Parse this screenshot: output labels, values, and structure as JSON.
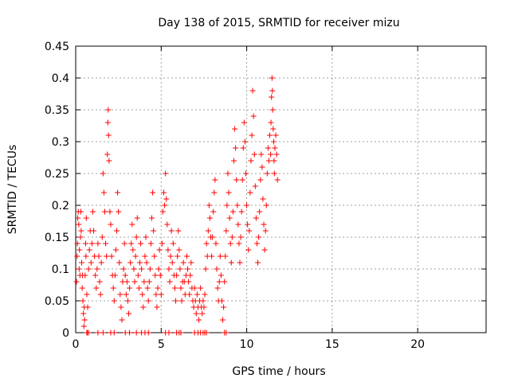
{
  "chart_data": {
    "type": "scatter",
    "title": "Day 138 of 2015, SRMTID for receiver mizu",
    "xlabel": "GPS time / hours",
    "ylabel": "SRMTID / TECUs",
    "xlim": [
      0,
      24
    ],
    "ylim": [
      0,
      0.45
    ],
    "xticks": [
      0,
      5,
      10,
      15,
      20
    ],
    "xtick_labels": [
      "0",
      "5",
      "10",
      "15",
      "20"
    ],
    "yticks": [
      0,
      0.05,
      0.1,
      0.15,
      0.2,
      0.25,
      0.3,
      0.35,
      0.4,
      0.45
    ],
    "ytick_labels": [
      "0",
      "0.05",
      "0.1",
      "0.15",
      "0.2",
      "0.25",
      "0.3",
      "0.35",
      "0.4",
      "0.45"
    ],
    "grid": true,
    "marker": "+",
    "color": "#ff0000",
    "series": [
      {
        "name": "SRMTID",
        "points": [
          [
            0.05,
            0.08
          ],
          [
            0.08,
            0.12
          ],
          [
            0.1,
            0.14
          ],
          [
            0.12,
            0.18
          ],
          [
            0.15,
            0.19
          ],
          [
            0.18,
            0.17
          ],
          [
            0.2,
            0.1
          ],
          [
            0.22,
            0.13
          ],
          [
            0.25,
            0.09
          ],
          [
            0.28,
            0.15
          ],
          [
            0.3,
            0.19
          ],
          [
            0.32,
            0.16
          ],
          [
            0.35,
            0.11
          ],
          [
            0.38,
            0.07
          ],
          [
            0.4,
            0.09
          ],
          [
            0.42,
            0.05
          ],
          [
            0.45,
            0.03
          ],
          [
            0.48,
            0.01
          ],
          [
            0.5,
            0.04
          ],
          [
            0.52,
            0.02
          ],
          [
            0.55,
            0.09
          ],
          [
            0.58,
            0.14
          ],
          [
            0.6,
            0.12
          ],
          [
            0.62,
            0.18
          ],
          [
            0.65,
            0.06
          ],
          [
            0.68,
            0.0
          ],
          [
            0.7,
            0.04
          ],
          [
            0.75,
            0.1
          ],
          [
            0.8,
            0.13
          ],
          [
            0.85,
            0.16
          ],
          [
            0.9,
            0.11
          ],
          [
            0.95,
            0.14
          ],
          [
            1.0,
            0.19
          ],
          [
            1.05,
            0.16
          ],
          [
            1.1,
            0.12
          ],
          [
            1.15,
            0.09
          ],
          [
            1.2,
            0.07
          ],
          [
            1.25,
            0.1
          ],
          [
            1.3,
            0.14
          ],
          [
            1.35,
            0.12
          ],
          [
            1.4,
            0.08
          ],
          [
            1.45,
            0.06
          ],
          [
            1.5,
            0.11
          ],
          [
            1.55,
            0.15
          ],
          [
            1.6,
            0.25
          ],
          [
            1.65,
            0.22
          ],
          [
            1.7,
            0.19
          ],
          [
            1.75,
            0.14
          ],
          [
            1.8,
            0.12
          ],
          [
            1.85,
            0.28
          ],
          [
            1.88,
            0.33
          ],
          [
            1.9,
            0.35
          ],
          [
            1.92,
            0.31
          ],
          [
            1.95,
            0.27
          ],
          [
            2.0,
            0.19
          ],
          [
            2.05,
            0.17
          ],
          [
            2.1,
            0.12
          ],
          [
            2.15,
            0.09
          ],
          [
            2.2,
            0.07
          ],
          [
            2.25,
            0.05
          ],
          [
            2.3,
            0.09
          ],
          [
            2.35,
            0.13
          ],
          [
            2.4,
            0.16
          ],
          [
            2.45,
            0.22
          ],
          [
            2.5,
            0.19
          ],
          [
            2.55,
            0.11
          ],
          [
            2.6,
            0.06
          ],
          [
            2.65,
            0.04
          ],
          [
            2.7,
            0.02
          ],
          [
            2.75,
            0.08
          ],
          [
            2.8,
            0.1
          ],
          [
            2.85,
            0.14
          ],
          [
            2.9,
            0.09
          ],
          [
            2.95,
            0.06
          ],
          [
            3.0,
            0.08
          ],
          [
            3.05,
            0.05
          ],
          [
            3.1,
            0.03
          ],
          [
            3.15,
            0.07
          ],
          [
            3.2,
            0.11
          ],
          [
            3.25,
            0.14
          ],
          [
            3.3,
            0.17
          ],
          [
            3.35,
            0.13
          ],
          [
            3.4,
            0.1
          ],
          [
            3.45,
            0.08
          ],
          [
            3.5,
            0.12
          ],
          [
            3.55,
            0.15
          ],
          [
            3.6,
            0.18
          ],
          [
            3.65,
            0.09
          ],
          [
            3.7,
            0.07
          ],
          [
            3.75,
            0.11
          ],
          [
            3.8,
            0.14
          ],
          [
            3.85,
            0.1
          ],
          [
            3.9,
            0.06
          ],
          [
            3.95,
            0.04
          ],
          [
            4.0,
            0.08
          ],
          [
            4.05,
            0.12
          ],
          [
            4.1,
            0.15
          ],
          [
            4.15,
            0.11
          ],
          [
            4.2,
            0.07
          ],
          [
            4.25,
            0.05
          ],
          [
            4.3,
            0.08
          ],
          [
            4.35,
            0.1
          ],
          [
            4.4,
            0.14
          ],
          [
            4.45,
            0.18
          ],
          [
            4.5,
            0.22
          ],
          [
            4.55,
            0.16
          ],
          [
            4.6,
            0.12
          ],
          [
            4.65,
            0.09
          ],
          [
            4.7,
            0.06
          ],
          [
            4.75,
            0.04
          ],
          [
            4.8,
            0.07
          ],
          [
            4.85,
            0.1
          ],
          [
            4.9,
            0.13
          ],
          [
            4.95,
            0.09
          ],
          [
            5.0,
            0.06
          ],
          [
            5.05,
            0.14
          ],
          [
            5.1,
            0.19
          ],
          [
            5.15,
            0.22
          ],
          [
            5.2,
            0.2
          ],
          [
            5.25,
            0.25
          ],
          [
            5.3,
            0.21
          ],
          [
            5.35,
            0.17
          ],
          [
            5.4,
            0.13
          ],
          [
            5.45,
            0.1
          ],
          [
            5.5,
            0.08
          ],
          [
            5.55,
            0.12
          ],
          [
            5.6,
            0.16
          ],
          [
            5.65,
            0.11
          ],
          [
            5.7,
            0.14
          ],
          [
            5.75,
            0.09
          ],
          [
            5.8,
            0.07
          ],
          [
            5.85,
            0.05
          ],
          [
            5.9,
            0.09
          ],
          [
            5.95,
            0.12
          ],
          [
            6.0,
            0.16
          ],
          [
            6.05,
            0.13
          ],
          [
            6.1,
            0.1
          ],
          [
            6.15,
            0.07
          ],
          [
            6.2,
            0.05
          ],
          [
            6.25,
            0.08
          ],
          [
            6.3,
            0.11
          ],
          [
            6.35,
            0.08
          ],
          [
            6.4,
            0.06
          ],
          [
            6.45,
            0.09
          ],
          [
            6.5,
            0.12
          ],
          [
            6.55,
            0.1
          ],
          [
            6.6,
            0.08
          ],
          [
            6.65,
            0.06
          ],
          [
            6.7,
            0.09
          ],
          [
            6.75,
            0.11
          ],
          [
            6.8,
            0.07
          ],
          [
            6.85,
            0.05
          ],
          [
            6.9,
            0.04
          ],
          [
            6.95,
            0.07
          ],
          [
            7.0,
            0.05
          ],
          [
            7.05,
            0.03
          ],
          [
            7.1,
            0.06
          ],
          [
            7.15,
            0.04
          ],
          [
            7.2,
            0.02
          ],
          [
            7.25,
            0.05
          ],
          [
            7.3,
            0.07
          ],
          [
            7.35,
            0.04
          ],
          [
            7.4,
            0.03
          ],
          [
            7.45,
            0.05
          ],
          [
            7.5,
            0.04
          ],
          [
            7.55,
            0.06
          ],
          [
            7.6,
            0.1
          ],
          [
            7.65,
            0.14
          ],
          [
            7.7,
            0.12
          ],
          [
            7.75,
            0.16
          ],
          [
            7.8,
            0.2
          ],
          [
            7.85,
            0.18
          ],
          [
            7.9,
            0.15
          ],
          [
            7.95,
            0.12
          ],
          [
            8.0,
            0.15
          ],
          [
            8.05,
            0.19
          ],
          [
            8.1,
            0.22
          ],
          [
            8.15,
            0.24
          ],
          [
            8.2,
            0.14
          ],
          [
            8.25,
            0.1
          ],
          [
            8.3,
            0.07
          ],
          [
            8.35,
            0.05
          ],
          [
            8.4,
            0.08
          ],
          [
            8.45,
            0.12
          ],
          [
            8.5,
            0.09
          ],
          [
            8.55,
            0.05
          ],
          [
            8.6,
            0.02
          ],
          [
            8.65,
            0.04
          ],
          [
            8.7,
            0.08
          ],
          [
            8.75,
            0.12
          ],
          [
            8.8,
            0.16
          ],
          [
            8.85,
            0.2
          ],
          [
            8.9,
            0.25
          ],
          [
            8.95,
            0.22
          ],
          [
            9.0,
            0.18
          ],
          [
            9.05,
            0.14
          ],
          [
            9.1,
            0.11
          ],
          [
            9.15,
            0.15
          ],
          [
            9.2,
            0.19
          ],
          [
            9.25,
            0.27
          ],
          [
            9.3,
            0.32
          ],
          [
            9.35,
            0.29
          ],
          [
            9.4,
            0.24
          ],
          [
            9.45,
            0.2
          ],
          [
            9.5,
            0.17
          ],
          [
            9.55,
            0.14
          ],
          [
            9.6,
            0.11
          ],
          [
            9.65,
            0.15
          ],
          [
            9.7,
            0.19
          ],
          [
            9.75,
            0.24
          ],
          [
            9.8,
            0.29
          ],
          [
            9.85,
            0.33
          ],
          [
            9.9,
            0.3
          ],
          [
            9.95,
            0.25
          ],
          [
            10.0,
            0.2
          ],
          [
            10.05,
            0.17
          ],
          [
            10.1,
            0.13
          ],
          [
            10.15,
            0.16
          ],
          [
            10.2,
            0.22
          ],
          [
            10.25,
            0.27
          ],
          [
            10.3,
            0.31
          ],
          [
            10.35,
            0.38
          ],
          [
            10.4,
            0.34
          ],
          [
            10.45,
            0.28
          ],
          [
            10.5,
            0.23
          ],
          [
            10.55,
            0.18
          ],
          [
            10.6,
            0.14
          ],
          [
            10.65,
            0.11
          ],
          [
            10.7,
            0.15
          ],
          [
            10.75,
            0.19
          ],
          [
            10.8,
            0.24
          ],
          [
            10.85,
            0.28
          ],
          [
            10.9,
            0.26
          ],
          [
            10.95,
            0.21
          ],
          [
            11.0,
            0.17
          ],
          [
            11.05,
            0.13
          ],
          [
            11.1,
            0.16
          ],
          [
            11.15,
            0.2
          ],
          [
            11.2,
            0.25
          ],
          [
            11.25,
            0.29
          ],
          [
            11.3,
            0.27
          ],
          [
            11.35,
            0.31
          ],
          [
            11.4,
            0.28
          ],
          [
            11.42,
            0.33
          ],
          [
            11.45,
            0.37
          ],
          [
            11.48,
            0.4
          ],
          [
            11.5,
            0.38
          ],
          [
            11.52,
            0.35
          ],
          [
            11.55,
            0.32
          ],
          [
            11.58,
            0.3
          ],
          [
            11.6,
            0.27
          ],
          [
            11.62,
            0.25
          ],
          [
            11.65,
            0.29
          ],
          [
            11.7,
            0.31
          ],
          [
            11.75,
            0.28
          ],
          [
            11.8,
            0.24
          ],
          [
            0.65,
            0.0
          ],
          [
            0.75,
            0.0
          ],
          [
            1.3,
            0.0
          ],
          [
            1.6,
            0.0
          ],
          [
            2.05,
            0.0
          ],
          [
            2.25,
            0.0
          ],
          [
            2.9,
            0.0
          ],
          [
            3.15,
            0.0
          ],
          [
            3.55,
            0.0
          ],
          [
            3.85,
            0.0
          ],
          [
            4.05,
            0.0
          ],
          [
            4.25,
            0.0
          ],
          [
            5.25,
            0.0
          ],
          [
            5.45,
            0.0
          ],
          [
            5.9,
            0.0
          ],
          [
            6.05,
            0.0
          ],
          [
            6.15,
            0.0
          ],
          [
            6.95,
            0.0
          ],
          [
            7.15,
            0.0
          ],
          [
            7.3,
            0.0
          ],
          [
            7.45,
            0.0
          ],
          [
            7.55,
            0.0
          ],
          [
            7.65,
            0.0
          ],
          [
            8.7,
            0.0
          ],
          [
            8.8,
            0.0
          ]
        ]
      }
    ]
  }
}
